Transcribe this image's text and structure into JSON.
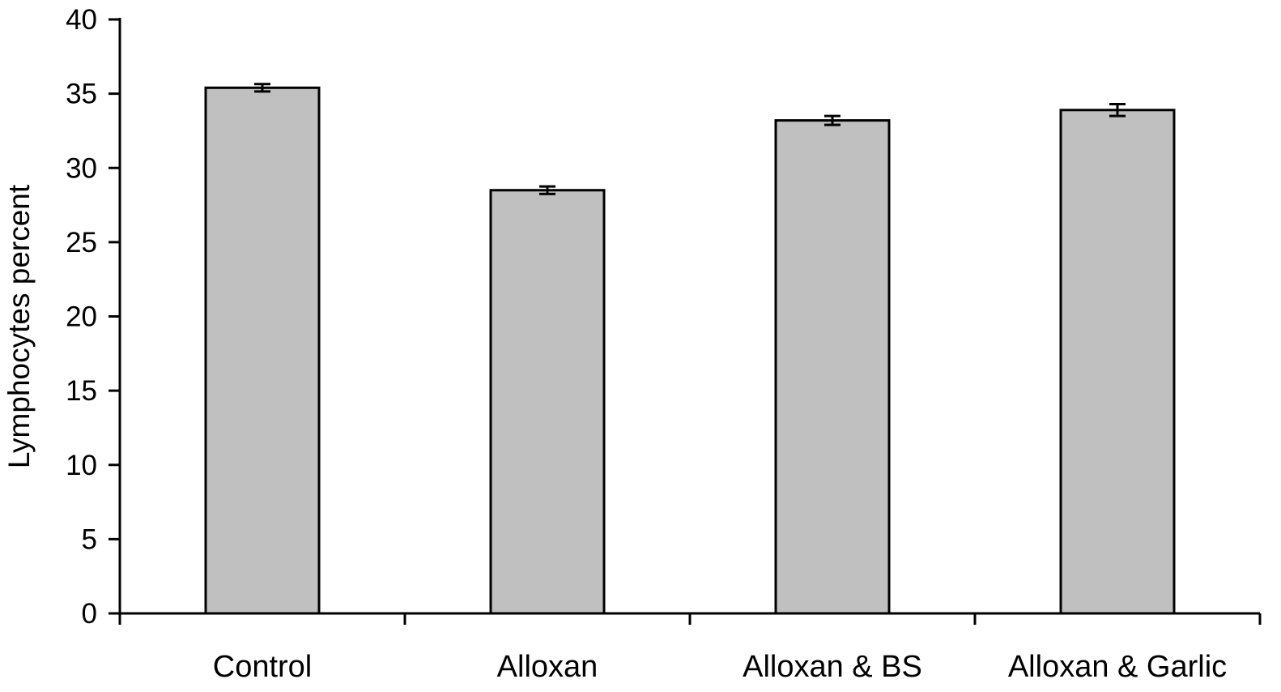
{
  "chart_data": {
    "type": "bar",
    "categories": [
      "Control",
      "Alloxan",
      "Alloxan & BS",
      "Alloxan & Garlic"
    ],
    "values": [
      35.4,
      28.5,
      33.2,
      33.9
    ],
    "errors": [
      0.25,
      0.25,
      0.3,
      0.4
    ],
    "ylabel": "Lymphocytes percent",
    "xlabel": "",
    "ylim": [
      0,
      40
    ],
    "yticks": [
      0,
      5,
      10,
      15,
      20,
      25,
      30,
      35,
      40
    ],
    "grid": false,
    "colors": {
      "bar_fill": "#c0c0c0",
      "bar_stroke": "#000000"
    }
  }
}
